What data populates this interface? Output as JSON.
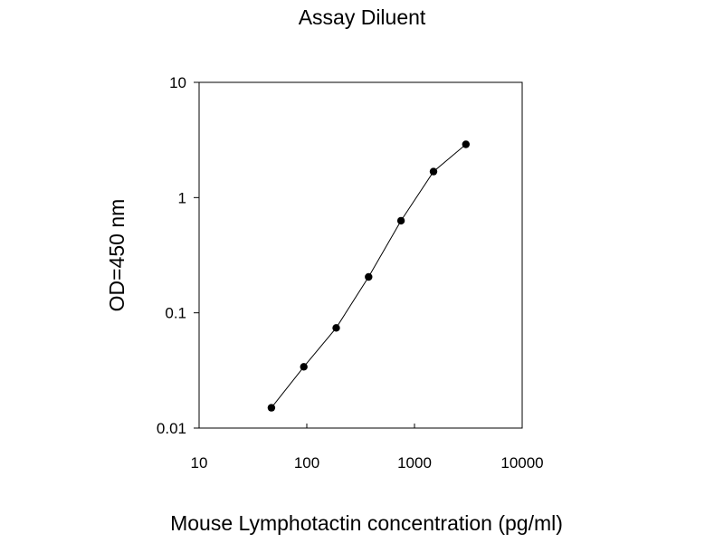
{
  "chart_data": {
    "type": "line",
    "title": "Assay Diluent",
    "xlabel": "Mouse Lymphotactin concentration (pg/ml)",
    "ylabel": "OD=450 nm",
    "x_scale": "log",
    "y_scale": "log",
    "xlim": [
      10,
      10000
    ],
    "ylim": [
      0.01,
      10
    ],
    "x_ticks": [
      "10",
      "100",
      "1000",
      "10000"
    ],
    "y_ticks": [
      "0.01",
      "0.1",
      "1",
      "10"
    ],
    "grid": false,
    "legend": "none",
    "series": [
      {
        "x": [
          46.9,
          93.8,
          187.5,
          375,
          750,
          1500,
          3000
        ],
        "y": [
          0.015,
          0.034,
          0.074,
          0.205,
          0.63,
          1.68,
          2.9
        ],
        "color": "#000000",
        "marker": "circle"
      }
    ]
  }
}
